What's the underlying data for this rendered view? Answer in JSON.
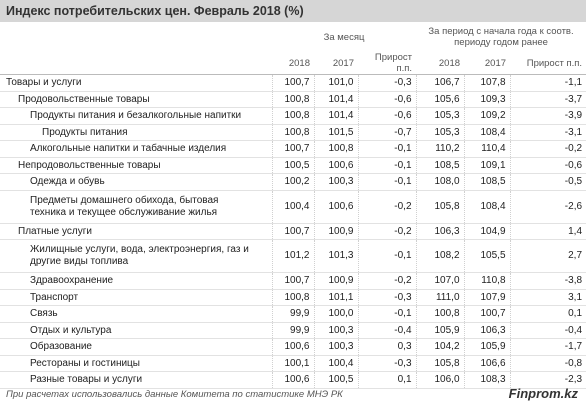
{
  "title": "Индекс потребительских цен. Февраль 2018 (%)",
  "groups": [
    "За месяц",
    "За период с начала года к соотв. периоду годом ранее"
  ],
  "subheaders": [
    "2018",
    "2017",
    "Прирост п.п.",
    "2018",
    "2017",
    "Прирост п.п."
  ],
  "rows": [
    {
      "label": "Товары и услуги",
      "values": [
        "100,7",
        "101,0",
        "-0,3",
        "106,7",
        "107,8",
        "-1,1"
      ]
    },
    {
      "label": "Продовольственные товары",
      "values": [
        "100,8",
        "101,4",
        "-0,6",
        "105,6",
        "109,3",
        "-3,7"
      ]
    },
    {
      "label": "Продукты питания и безалкогольные напитки",
      "values": [
        "100,8",
        "101,4",
        "-0,6",
        "105,3",
        "109,2",
        "-3,9"
      ]
    },
    {
      "label": "Продукты питания",
      "values": [
        "100,8",
        "101,5",
        "-0,7",
        "105,3",
        "108,4",
        "-3,1"
      ]
    },
    {
      "label": "Алкогольные напитки и табачные изделия",
      "values": [
        "100,7",
        "100,8",
        "-0,1",
        "110,2",
        "110,4",
        "-0,2"
      ]
    },
    {
      "label": "Непродовольственные товары",
      "values": [
        "100,5",
        "100,6",
        "-0,1",
        "108,5",
        "109,1",
        "-0,6"
      ]
    },
    {
      "label": "Одежда и обувь",
      "values": [
        "100,2",
        "100,3",
        "-0,1",
        "108,0",
        "108,5",
        "-0,5"
      ]
    },
    {
      "label": "Предметы домашнего обихода, бытовая техника и текущее обслуживание жилья",
      "values": [
        "100,4",
        "100,6",
        "-0,2",
        "105,8",
        "108,4",
        "-2,6"
      ]
    },
    {
      "label": "Платные услуги",
      "values": [
        "100,7",
        "100,9",
        "-0,2",
        "106,3",
        "104,9",
        "1,4"
      ]
    },
    {
      "label": "Жилищные услуги, вода, электроэнергия, газ и другие виды топлива",
      "values": [
        "101,2",
        "101,3",
        "-0,1",
        "108,2",
        "105,5",
        "2,7"
      ]
    },
    {
      "label": "Здравоохранение",
      "values": [
        "100,7",
        "100,9",
        "-0,2",
        "107,0",
        "110,8",
        "-3,8"
      ]
    },
    {
      "label": "Транспорт",
      "values": [
        "100,8",
        "101,1",
        "-0,3",
        "111,0",
        "107,9",
        "3,1"
      ]
    },
    {
      "label": "Связь",
      "values": [
        "99,9",
        "100,0",
        "-0,1",
        "100,8",
        "100,7",
        "0,1"
      ]
    },
    {
      "label": "Отдых и культура",
      "values": [
        "99,9",
        "100,3",
        "-0,4",
        "105,9",
        "106,3",
        "-0,4"
      ]
    },
    {
      "label": "Образование",
      "values": [
        "100,6",
        "100,3",
        "0,3",
        "104,2",
        "105,9",
        "-1,7"
      ]
    },
    {
      "label": "Рестораны и гостиницы",
      "values": [
        "100,1",
        "100,4",
        "-0,3",
        "105,8",
        "106,6",
        "-0,8"
      ]
    },
    {
      "label": "Разные товары и услуги",
      "values": [
        "100,6",
        "100,5",
        "0,1",
        "106,0",
        "108,3",
        "-2,3"
      ]
    }
  ],
  "footnote": "При расчетах использовались данные Комитета по статистике МНЭ РК",
  "source": "Finprom.kz"
}
